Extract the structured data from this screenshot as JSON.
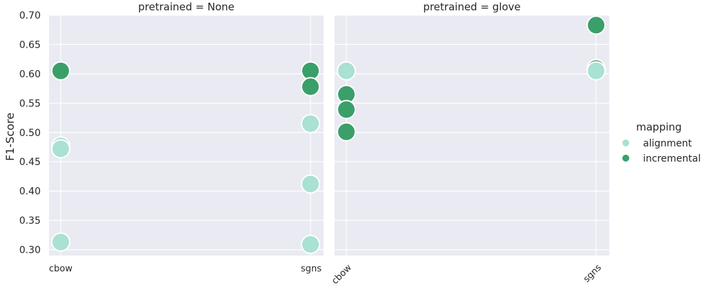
{
  "chart_data": {
    "type": "scatter",
    "ylabel": "F1-Score",
    "ylim": [
      0.29,
      0.7
    ],
    "yticks": [
      "0.30",
      "0.35",
      "0.40",
      "0.45",
      "0.50",
      "0.55",
      "0.60",
      "0.65",
      "0.70"
    ],
    "categories": [
      "cbow",
      "sgns"
    ],
    "grid": true,
    "legend": {
      "title": "mapping",
      "placement": "right",
      "entries": [
        {
          "label": "alignment",
          "color": "#a9e1d2"
        },
        {
          "label": "incremental",
          "color": "#3a9f69"
        }
      ]
    },
    "panels": [
      {
        "title": "pretrained = None",
        "xtick_rotation": 0,
        "series": [
          {
            "name": "alignment",
            "points": [
              {
                "x": "cbow",
                "y": 0.477
              },
              {
                "x": "cbow",
                "y": 0.472
              },
              {
                "x": "cbow",
                "y": 0.313
              },
              {
                "x": "sgns",
                "y": 0.515
              },
              {
                "x": "sgns",
                "y": 0.412
              },
              {
                "x": "sgns",
                "y": 0.309
              }
            ]
          },
          {
            "name": "incremental",
            "points": [
              {
                "x": "cbow",
                "y": 0.605
              },
              {
                "x": "sgns",
                "y": 0.605
              },
              {
                "x": "sgns",
                "y": 0.578
              }
            ]
          }
        ]
      },
      {
        "title": "pretrained = glove",
        "xtick_rotation": -45,
        "series": [
          {
            "name": "incremental",
            "points": [
              {
                "x": "cbow",
                "y": 0.565
              },
              {
                "x": "cbow",
                "y": 0.539
              },
              {
                "x": "cbow",
                "y": 0.501
              },
              {
                "x": "sgns",
                "y": 0.683
              },
              {
                "x": "sgns",
                "y": 0.609
              }
            ]
          },
          {
            "name": "alignment",
            "points": [
              {
                "x": "cbow",
                "y": 0.605
              },
              {
                "x": "sgns",
                "y": 0.605
              }
            ]
          }
        ]
      }
    ]
  }
}
